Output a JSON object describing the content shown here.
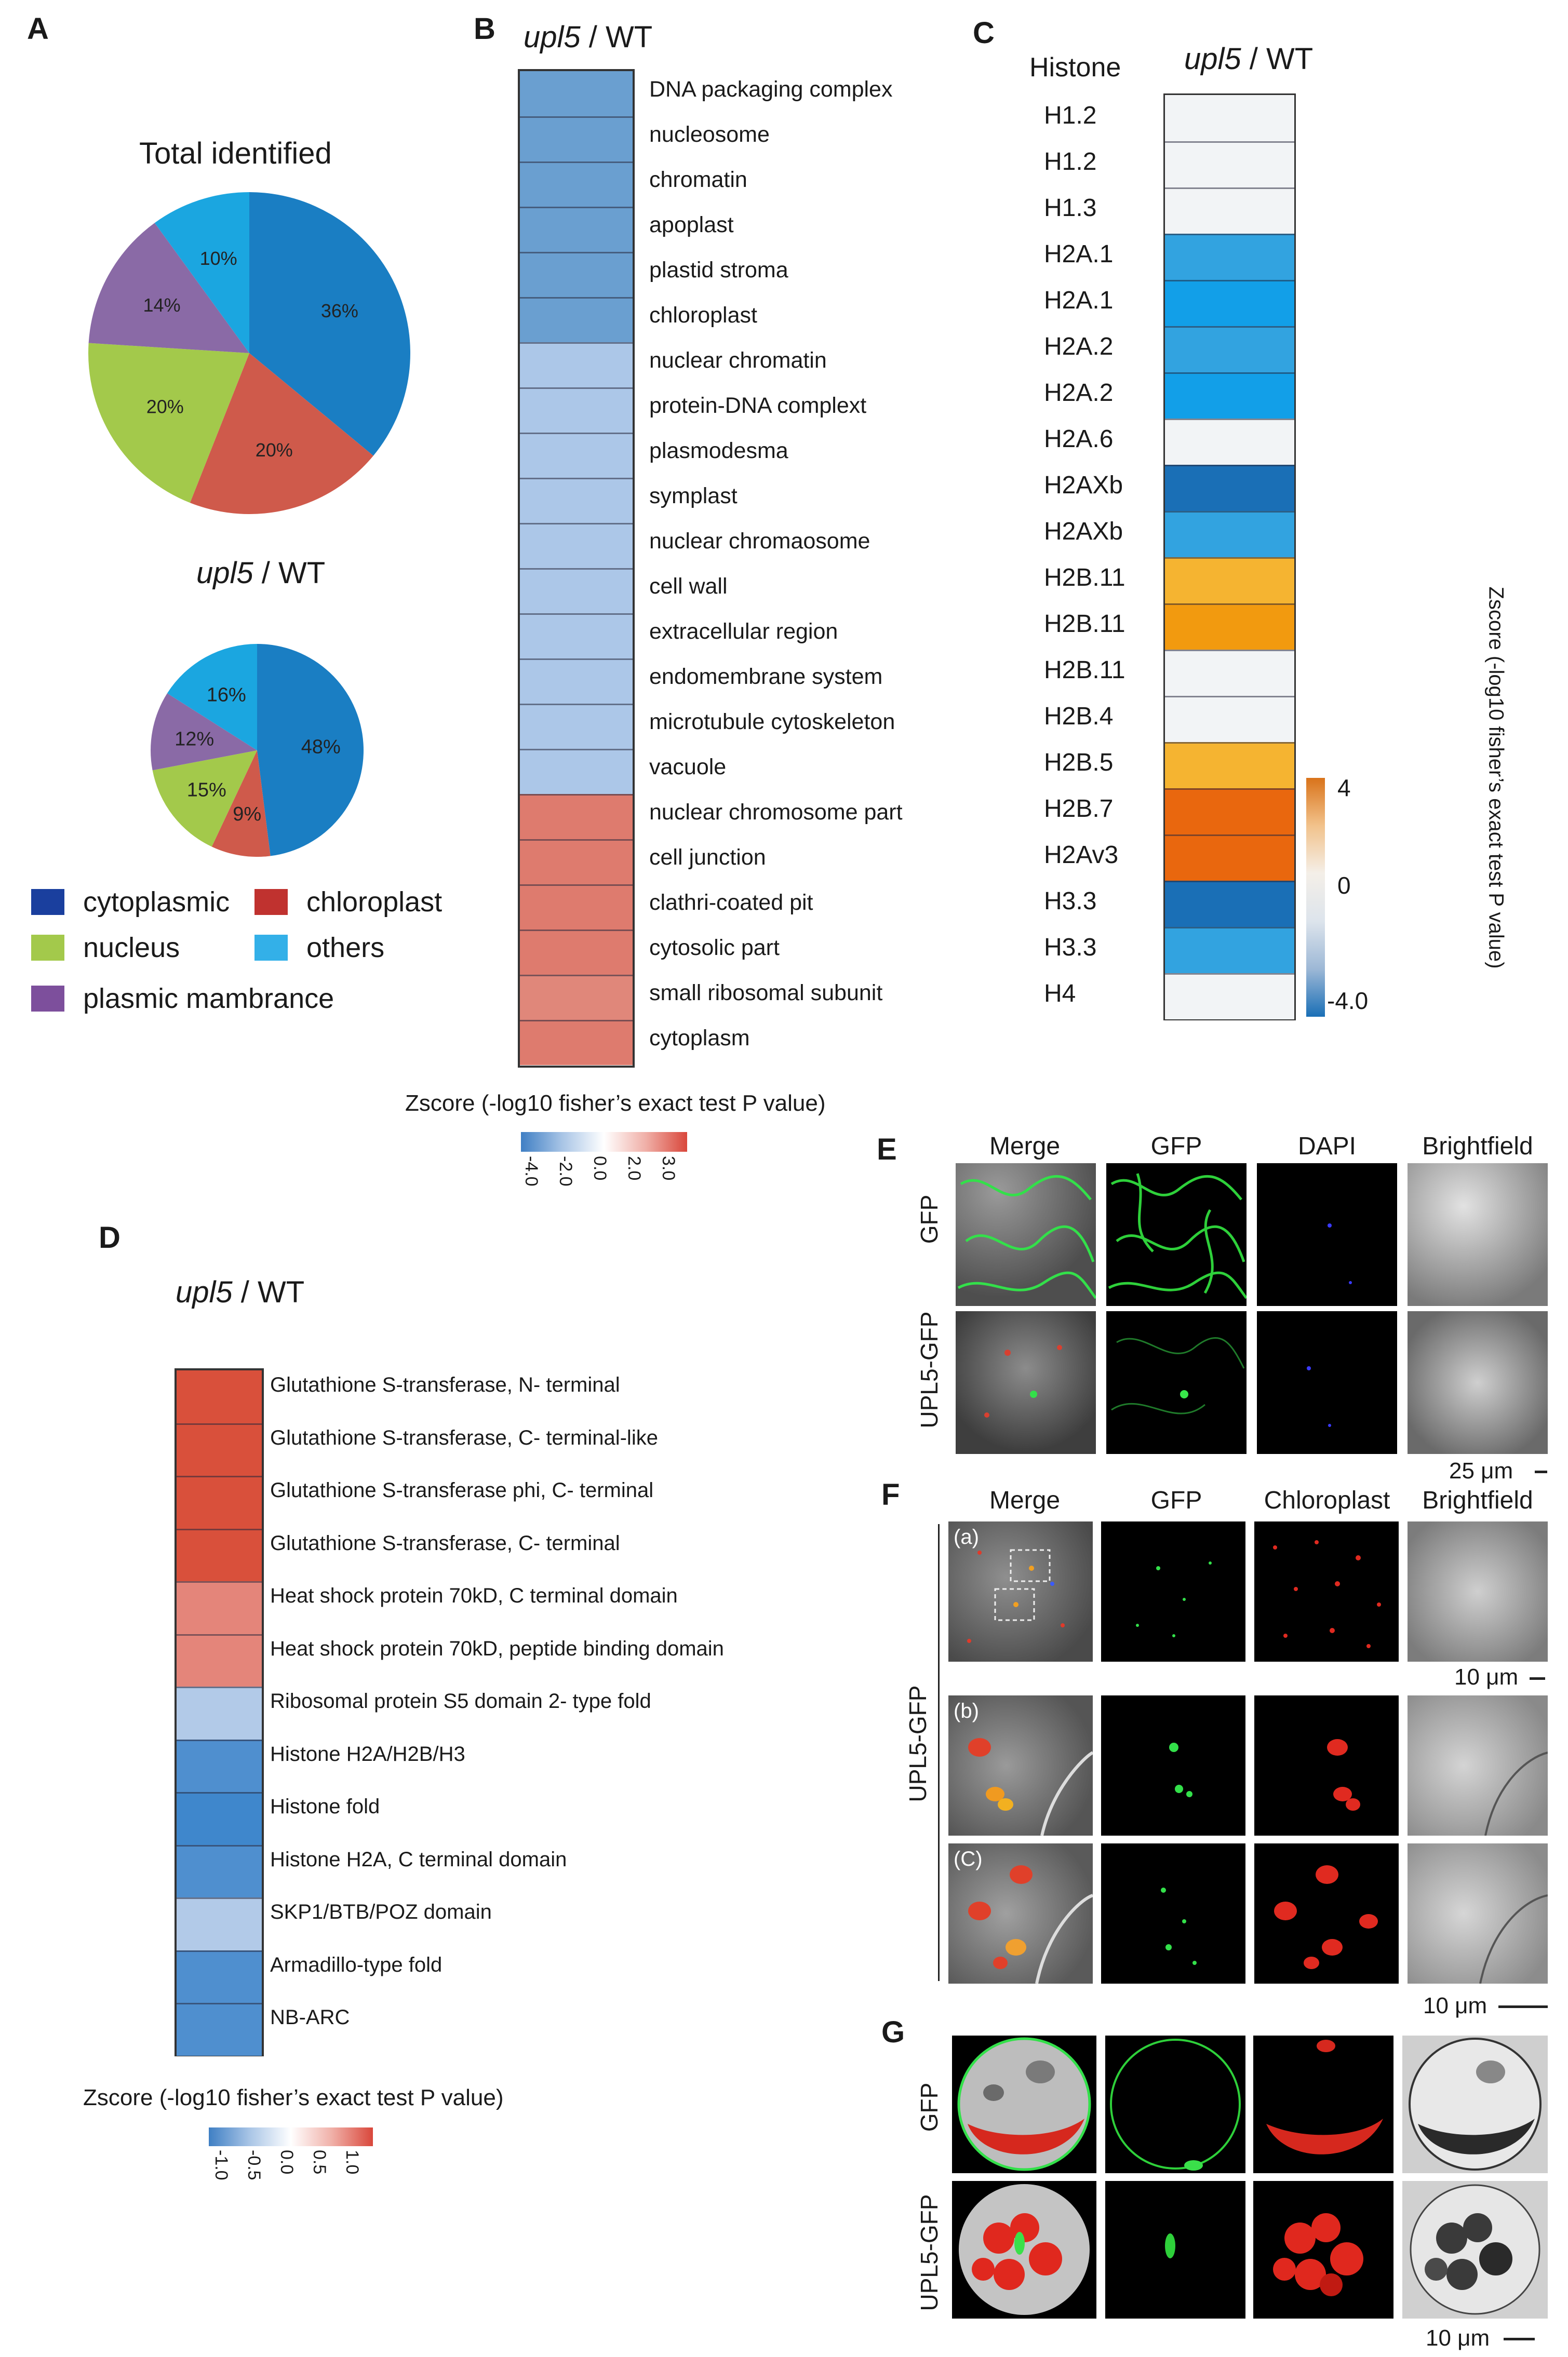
{
  "panels": {
    "A": "A",
    "B": "B",
    "C": "C",
    "D": "D",
    "E": "E",
    "F": "F",
    "G": "G"
  },
  "panelA": {
    "total_title": "Total identified",
    "upl5_title_italic": "upl5",
    "upl5_title_rest": " / WT",
    "legend": [
      {
        "label": "cytoplasmic",
        "color": "#1a3f9e"
      },
      {
        "label": "chloroplast",
        "color": "#c0322f"
      },
      {
        "label": "nucleus",
        "color": "#a3c94b"
      },
      {
        "label": "others",
        "color": "#33b0e8"
      },
      {
        "label": "plasmic mambrance",
        "color": "#7d4f9c"
      }
    ]
  },
  "panelB": {
    "title_italic": "upl5",
    "title_rest": " / WT",
    "scale_title": "Zscore (-log10 fisher’s exact test P value)",
    "ticks": [
      "-4.0",
      "-2.0",
      "0.0",
      "2.0",
      "3.0"
    ]
  },
  "panelC": {
    "col_header": "Histone",
    "title_italic": "upl5",
    "title_rest": " / WT",
    "scale_title": "Zscore (-log10 fisher’s exact test P value)",
    "ticks": [
      "4",
      "0",
      "-4.0"
    ]
  },
  "panelD": {
    "title_italic": "upl5",
    "title_rest": " / WT",
    "scale_title": "Zscore (-log10 fisher’s exact test P value)",
    "ticks": [
      "-1.0",
      "-0.5",
      "0.0",
      "0.5",
      "1.0"
    ]
  },
  "panelE": {
    "columns": [
      "Merge",
      "GFP",
      "DAPI",
      "Brightfield"
    ],
    "rows": [
      "GFP",
      "UPL5-GFP"
    ],
    "scale": "25 μm"
  },
  "panelF": {
    "columns": [
      "Merge",
      "GFP",
      "Chloroplast",
      "Brightfield"
    ],
    "group_label": "UPL5-GFP",
    "subs": [
      "(a)",
      "(b)",
      "(C)"
    ],
    "scale1": "10 μm",
    "scale2": "10 μm"
  },
  "panelG": {
    "rows": [
      "GFP",
      "UPL5-GFP"
    ],
    "scale": "10 μm"
  },
  "chart_data": [
    {
      "type": "pie",
      "title": "Total identified",
      "slices": [
        {
          "label": "cytoplasmic",
          "value": 36,
          "text": "36%",
          "color": "#1a7ec3"
        },
        {
          "label": "chloroplast",
          "value": 20,
          "text": "20%",
          "color": "#cf5a4b"
        },
        {
          "label": "nucleus",
          "value": 20,
          "text": "20%",
          "color": "#a3c94b"
        },
        {
          "label": "plasmic mambrance",
          "value": 14,
          "text": "14%",
          "color": "#8a6aa6"
        },
        {
          "label": "others",
          "value": 10,
          "text": "10%",
          "color": "#1ba6e0"
        }
      ]
    },
    {
      "type": "pie",
      "title": "upl5 / WT",
      "slices": [
        {
          "label": "cytoplasmic",
          "value": 48,
          "text": "48%",
          "color": "#1a7ec3"
        },
        {
          "label": "chloroplast",
          "value": 9,
          "text": "9%",
          "color": "#cf5a4b"
        },
        {
          "label": "nucleus",
          "value": 15,
          "text": "15%",
          "color": "#a3c94b"
        },
        {
          "label": "plasmic mambrance",
          "value": 12,
          "text": "12%",
          "color": "#8a6aa6"
        },
        {
          "label": "others",
          "value": 16,
          "text": "16%",
          "color": "#1ba6e0"
        }
      ]
    },
    {
      "type": "heatmap",
      "title": "upl5 / WT",
      "rows": [
        {
          "label": "DNA packaging complex",
          "color": "#6a9fd0"
        },
        {
          "label": "nucleosome",
          "color": "#6a9fd0"
        },
        {
          "label": "chromatin",
          "color": "#6a9fd0"
        },
        {
          "label": "apoplast",
          "color": "#6a9fd0"
        },
        {
          "label": "plastid stroma",
          "color": "#6a9fd0"
        },
        {
          "label": "chloroplast",
          "color": "#6a9fd0"
        },
        {
          "label": "nuclear chromatin",
          "color": "#acc7e8"
        },
        {
          "label": "protein-DNA complext",
          "color": "#acc7e8"
        },
        {
          "label": "plasmodesma",
          "color": "#acc7e8"
        },
        {
          "label": "symplast",
          "color": "#acc7e8"
        },
        {
          "label": "nuclear chromaosome",
          "color": "#acc7e8"
        },
        {
          "label": "cell wall",
          "color": "#acc7e8"
        },
        {
          "label": "extracellular region",
          "color": "#acc7e8"
        },
        {
          "label": "endomembrane system",
          "color": "#acc7e8"
        },
        {
          "label": "microtubule cytoskeleton",
          "color": "#acc7e8"
        },
        {
          "label": "vacuole",
          "color": "#acc7e8"
        },
        {
          "label": "nuclear chromosome part",
          "color": "#de7b6e"
        },
        {
          "label": "cell junction",
          "color": "#de7b6e"
        },
        {
          "label": "clathri-coated pit",
          "color": "#de7b6e"
        },
        {
          "label": "cytosolic part",
          "color": "#de7b6e"
        },
        {
          "label": "small ribosomal subunit",
          "color": "#e0877a"
        },
        {
          "label": "cytoplasm",
          "color": "#de7b6e"
        }
      ]
    },
    {
      "type": "heatmap",
      "title": "upl5 / WT",
      "rows": [
        {
          "label": "H1.2",
          "color": "#f2f4f6"
        },
        {
          "label": "H1.2",
          "color": "#f2f4f6"
        },
        {
          "label": "H1.3",
          "color": "#f2f4f6"
        },
        {
          "label": "H2A.1",
          "color": "#32a3e0"
        },
        {
          "label": "H2A.1",
          "color": "#129fe8"
        },
        {
          "label": "H2A.2",
          "color": "#32a3e0"
        },
        {
          "label": "H2A.2",
          "color": "#129fe8"
        },
        {
          "label": "H2A.6",
          "color": "#f2f4f6"
        },
        {
          "label": "H2AXb",
          "color": "#1a6fb6"
        },
        {
          "label": "H2AXb",
          "color": "#32a3e0"
        },
        {
          "label": "H2B.11",
          "color": "#f5b431"
        },
        {
          "label": "H2B.11",
          "color": "#f29a0f"
        },
        {
          "label": "H2B.11",
          "color": "#f2f4f6"
        },
        {
          "label": "H2B.4",
          "color": "#f2f4f6"
        },
        {
          "label": "H2B.5",
          "color": "#f5b431"
        },
        {
          "label": "H2B.7",
          "color": "#e9670e"
        },
        {
          "label": "H2Av3",
          "color": "#e9670e"
        },
        {
          "label": "H3.3",
          "color": "#1a6fb6"
        },
        {
          "label": "H3.3",
          "color": "#32a3e0"
        },
        {
          "label": "H4",
          "color": "#f2f4f6"
        }
      ]
    },
    {
      "type": "heatmap",
      "title": "upl5 / WT",
      "rows": [
        {
          "label": "Glutathione S-transferase, N- terminal",
          "color": "#d9503b"
        },
        {
          "label": "Glutathione S-transferase, C- terminal-like",
          "color": "#d9503b"
        },
        {
          "label": "Glutathione S-transferase phi, C- terminal",
          "color": "#d9503b"
        },
        {
          "label": "Glutathione S-transferase, C- terminal",
          "color": "#d9503b"
        },
        {
          "label": "Heat shock protein 70kD, C terminal domain",
          "color": "#e4857a"
        },
        {
          "label": "Heat shock protein 70kD, peptide binding domain",
          "color": "#e4857a"
        },
        {
          "label": "Ribosomal protein S5 domain 2- type fold",
          "color": "#b2cae8"
        },
        {
          "label": "Histone H2A/H2B/H3",
          "color": "#4f8fcf"
        },
        {
          "label": "Histone fold",
          "color": "#3f87cc"
        },
        {
          "label": "Histone H2A, C terminal domain",
          "color": "#4f8fcf"
        },
        {
          "label": "SKP1/BTB/POZ domain",
          "color": "#b2cae8"
        },
        {
          "label": "Armadillo-type fold",
          "color": "#4f8fcf"
        },
        {
          "label": "NB-ARC",
          "color": "#4f8fcf"
        }
      ]
    }
  ]
}
